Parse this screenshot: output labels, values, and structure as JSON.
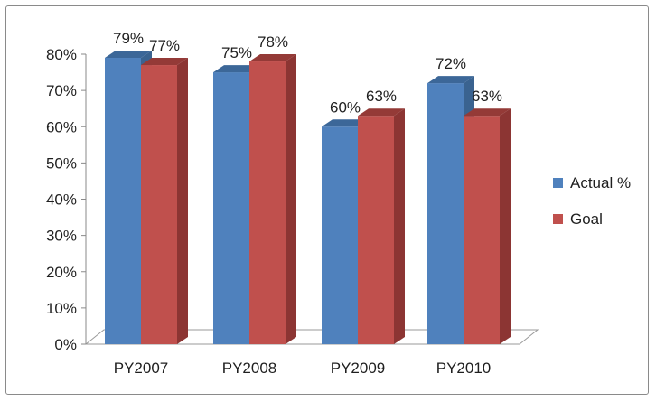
{
  "chart_data": {
    "type": "bar",
    "style": "3d-clustered",
    "title": "",
    "xlabel": "",
    "ylabel": "",
    "categories": [
      "PY2007",
      "PY2008",
      "PY2009",
      "PY2010"
    ],
    "series": [
      {
        "name": "Actual %",
        "values": [
          79,
          75,
          60,
          72
        ],
        "labels": [
          "79%",
          "75%",
          "60%",
          "72%"
        ],
        "color": "#4f81bd",
        "side_color": "#3a6390",
        "top_color": "#3c6798"
      },
      {
        "name": "Goal",
        "values": [
          77,
          78,
          63,
          63
        ],
        "labels": [
          "77%",
          "78%",
          "63%",
          "63%"
        ],
        "color": "#c0504d",
        "side_color": "#8c3533",
        "top_color": "#943a37"
      }
    ],
    "ylim": [
      0,
      80
    ],
    "y_ticks": [
      "0%",
      "10%",
      "20%",
      "30%",
      "40%",
      "50%",
      "60%",
      "70%",
      "80%"
    ],
    "grid": false,
    "legend": "right"
  }
}
